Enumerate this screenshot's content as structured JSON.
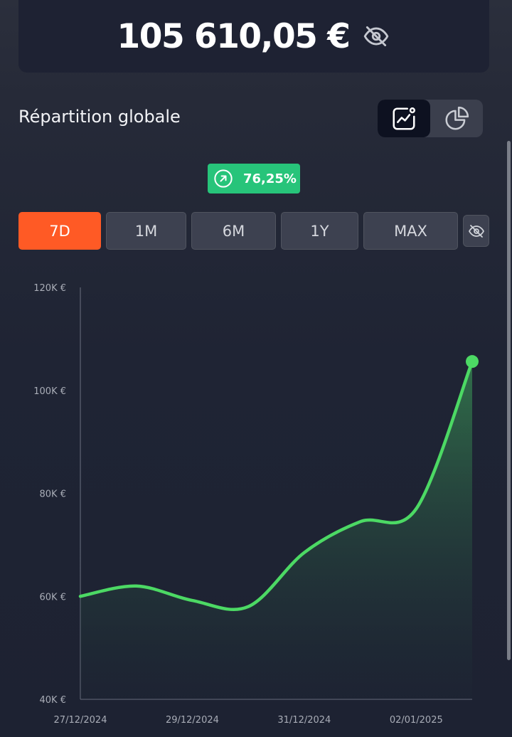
{
  "balance": {
    "amount": "105 610,05 €"
  },
  "header": {
    "title": "Répartition globale"
  },
  "view_toggle": {
    "options": [
      "line-chart-icon",
      "pie-chart-icon"
    ],
    "active": 0
  },
  "performance": {
    "value": "76,25%",
    "color": "#27c47a"
  },
  "ranges": {
    "items": [
      "7D",
      "1M",
      "6M",
      "1Y",
      "MAX"
    ],
    "active": "7D",
    "accent": "#ff5a25"
  },
  "chart_data": {
    "type": "area",
    "x": [
      "2024-12-27",
      "2024-12-28",
      "2024-12-29",
      "2024-12-30",
      "2024-12-31",
      "2025-01-01",
      "2025-01-02",
      "2025-01-03"
    ],
    "values": [
      60000,
      62000,
      59200,
      58000,
      68500,
      74500,
      77000,
      105610
    ],
    "xticks": [
      "27/12/2024",
      "29/12/2024",
      "31/12/2024",
      "02/01/2025"
    ],
    "yticks": [
      "40K €",
      "60K €",
      "80K €",
      "100K €",
      "120K €"
    ],
    "ylim": [
      40000,
      120000
    ],
    "line_color": "#4cd964",
    "grid": false
  }
}
